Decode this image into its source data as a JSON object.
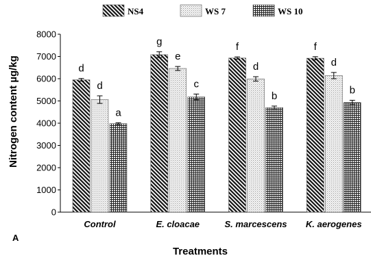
{
  "chart_data": {
    "type": "bar",
    "panel_label": "A",
    "xlabel": "Treatments",
    "ylabel": "Nitrogen content µg/kg",
    "ylim": [
      0,
      8000
    ],
    "yticks": [
      0,
      1000,
      2000,
      3000,
      4000,
      5000,
      6000,
      7000,
      8000
    ],
    "categories": [
      "Control",
      "E. cloacae",
      "S. marcescens",
      "K. aerogenes"
    ],
    "legend_position": "top",
    "grid": false,
    "series": [
      {
        "name": "NS4",
        "pattern": "diagonal-hatch",
        "values": [
          5950,
          7080,
          6930,
          6920
        ],
        "errors": [
          60,
          130,
          50,
          70
        ],
        "letters": [
          "d",
          "g",
          "f",
          "f"
        ]
      },
      {
        "name": "WS 7",
        "pattern": "dots",
        "values": [
          5060,
          6460,
          5990,
          6140
        ],
        "errors": [
          170,
          90,
          100,
          140
        ],
        "letters": [
          "d",
          "e",
          "d",
          "d"
        ]
      },
      {
        "name": "WS 10",
        "pattern": "grid",
        "values": [
          3980,
          5180,
          4700,
          4930
        ],
        "errors": [
          40,
          130,
          70,
          100
        ],
        "letters": [
          "a",
          "c",
          "b",
          "b"
        ]
      }
    ]
  }
}
